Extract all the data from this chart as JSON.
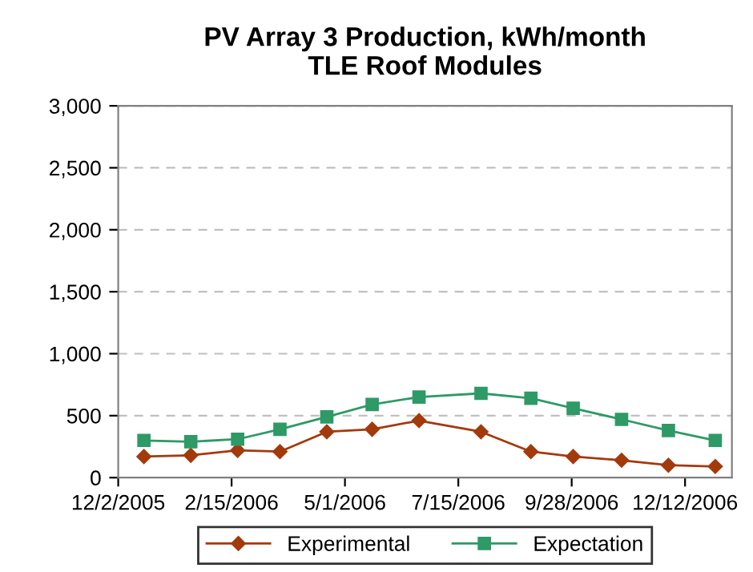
{
  "chart_data": {
    "type": "line",
    "title": "PV Array 3 Production, kWh/month\nTLE Roof Modules",
    "x": [
      "2005-12-19",
      "2006-01-19",
      "2006-02-19",
      "2006-03-19",
      "2006-04-19",
      "2006-05-19",
      "2006-06-19",
      "2006-07-30",
      "2006-09-01",
      "2006-09-29",
      "2006-10-31",
      "2006-12-01",
      "2007-01-01"
    ],
    "series": [
      {
        "name": "Experimental",
        "color": "#a33a0c",
        "marker": "diamond",
        "values": [
          170,
          180,
          220,
          210,
          370,
          390,
          460,
          370,
          210,
          170,
          140,
          100,
          90
        ]
      },
      {
        "name": "Expectation",
        "color": "#2e9a66",
        "marker": "square",
        "values": [
          300,
          290,
          310,
          390,
          490,
          590,
          650,
          680,
          640,
          560,
          470,
          380,
          300
        ]
      }
    ],
    "xlim": [
      "2005-12-02",
      "2007-01-12"
    ],
    "xticks": [
      {
        "value": "2005-12-02",
        "label": "12/2/2005"
      },
      {
        "value": "2006-02-15",
        "label": "2/15/2006"
      },
      {
        "value": "2006-05-01",
        "label": "5/1/2006"
      },
      {
        "value": "2006-07-15",
        "label": "7/15/2006"
      },
      {
        "value": "2006-09-28",
        "label": "9/28/2006"
      },
      {
        "value": "2006-12-12",
        "label": "12/12/2006"
      }
    ],
    "ylim": [
      0,
      3000
    ],
    "yticks": [
      {
        "value": 0,
        "label": "0"
      },
      {
        "value": 500,
        "label": "500"
      },
      {
        "value": 1000,
        "label": "1,000"
      },
      {
        "value": 1500,
        "label": "1,500"
      },
      {
        "value": 2000,
        "label": "2,000"
      },
      {
        "value": 2500,
        "label": "2,500"
      },
      {
        "value": 3000,
        "label": "3,000"
      }
    ],
    "grid": "y",
    "legend": "bottom",
    "line_style": "solid"
  }
}
